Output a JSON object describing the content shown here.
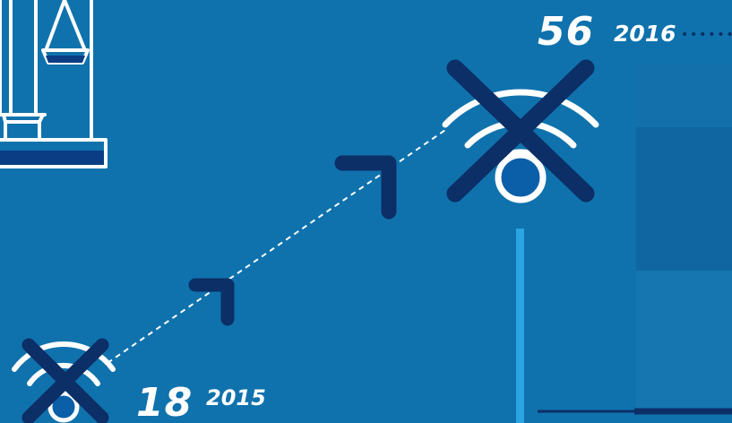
{
  "colors": {
    "background": "#0f72ad",
    "dark_navy": "#0b2f66",
    "white": "#ffffff",
    "light_blue_bar": "#2aa4e2",
    "panel_light": "#1676b0",
    "panel_mid": "#0f6aa3",
    "panel_dark": "#0d5f96"
  },
  "icons": {
    "scales": "scales-of-justice-icon",
    "no_wifi": "no-wifi-icon",
    "arrow": "up-right-arrow-icon"
  },
  "stats": [
    {
      "value": "18",
      "year": "2015"
    },
    {
      "value": "56",
      "year": "2016"
    }
  ]
}
